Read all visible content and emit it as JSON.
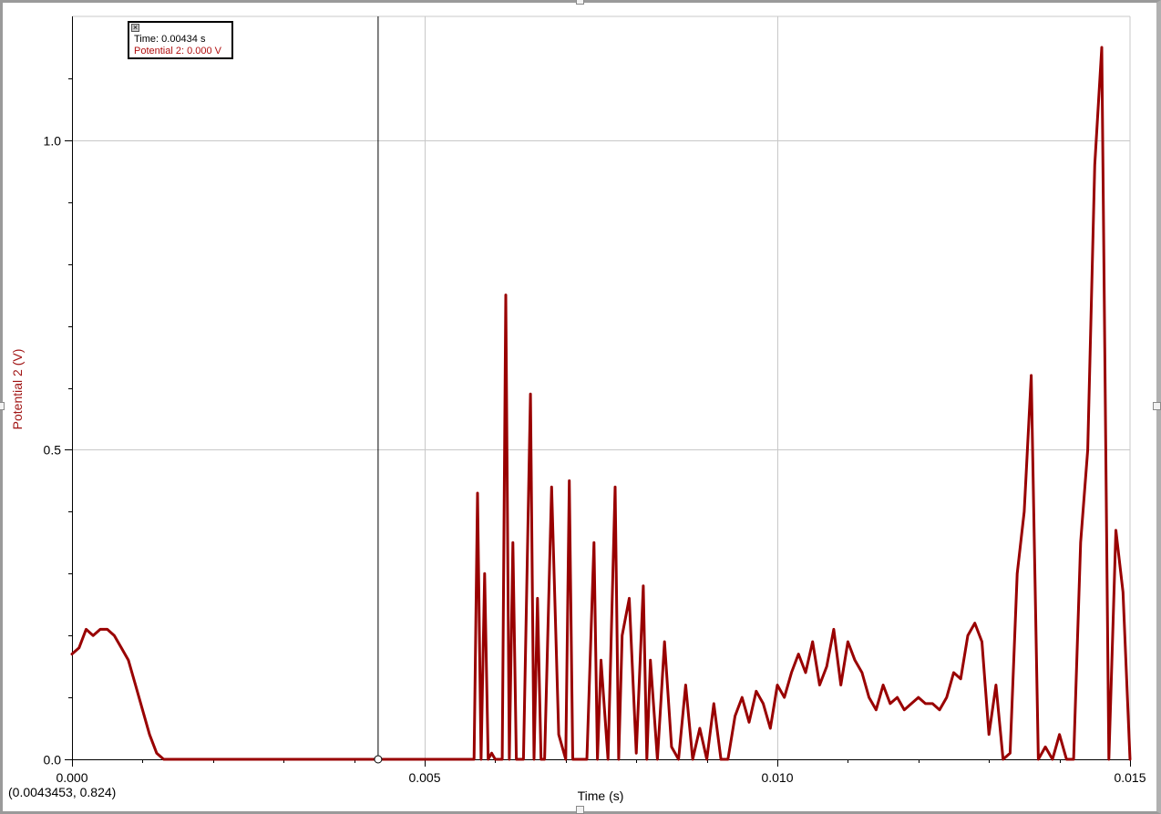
{
  "colors": {
    "series": "#990000",
    "axis_label_y": "#a11515",
    "grid": "#c8c8c8",
    "cursor_line": "#000000"
  },
  "cursor": {
    "time_label": "Time: 0.00434 s",
    "potential_label": "Potential 2: 0.000 V",
    "close_icon": "close-icon",
    "time_value": 0.00434
  },
  "readout": "(0.0043453, 0.824)",
  "chart_data": {
    "type": "line",
    "xlabel": "Time (s)",
    "ylabel": "Potential 2 (V)",
    "xlim": [
      0.0,
      0.015
    ],
    "ylim": [
      0.0,
      1.2
    ],
    "xticks": [
      {
        "value": 0.0,
        "label": "0.000"
      },
      {
        "value": 0.005,
        "label": "0.005"
      },
      {
        "value": 0.01,
        "label": "0.010"
      },
      {
        "value": 0.015,
        "label": "0.015"
      }
    ],
    "yticks": [
      {
        "value": 0.0,
        "label": "0.0"
      },
      {
        "value": 0.5,
        "label": "0.5"
      },
      {
        "value": 1.0,
        "label": "1.0"
      }
    ],
    "grid": true,
    "series": [
      {
        "x": [
          0.0,
          0.0001,
          0.0002,
          0.0003,
          0.0004,
          0.0005,
          0.0006,
          0.0007,
          0.0008,
          0.0009,
          0.001,
          0.0011,
          0.0012,
          0.0013,
          0.0014,
          0.002,
          0.003,
          0.004,
          0.005,
          0.0055,
          0.0057,
          0.00575,
          0.0058,
          0.00585,
          0.0059,
          0.00595,
          0.006,
          0.0061,
          0.00615,
          0.0062,
          0.00625,
          0.0063,
          0.0064,
          0.0065,
          0.00655,
          0.0066,
          0.00665,
          0.0067,
          0.0068,
          0.0069,
          0.007,
          0.00705,
          0.0071,
          0.0072,
          0.0073,
          0.0074,
          0.00745,
          0.0075,
          0.0076,
          0.0077,
          0.00775,
          0.0078,
          0.0079,
          0.008,
          0.0081,
          0.00815,
          0.0082,
          0.0083,
          0.0084,
          0.0085,
          0.0086,
          0.0087,
          0.0088,
          0.0089,
          0.009,
          0.0091,
          0.0092,
          0.0093,
          0.0094,
          0.0095,
          0.0096,
          0.0097,
          0.0098,
          0.0099,
          0.01,
          0.0101,
          0.0102,
          0.0103,
          0.0104,
          0.0105,
          0.0106,
          0.0107,
          0.0108,
          0.0109,
          0.011,
          0.0111,
          0.0112,
          0.0113,
          0.0114,
          0.0115,
          0.0116,
          0.0117,
          0.0118,
          0.0119,
          0.012,
          0.0121,
          0.0122,
          0.0123,
          0.0124,
          0.0125,
          0.0126,
          0.0127,
          0.0128,
          0.0129,
          0.013,
          0.0131,
          0.0132,
          0.0133,
          0.0134,
          0.0135,
          0.0136,
          0.0137,
          0.0138,
          0.0139,
          0.014,
          0.0141,
          0.0142,
          0.0143,
          0.0144,
          0.0145,
          0.0146,
          0.0147,
          0.0148,
          0.0149,
          0.015
        ],
        "y": [
          0.17,
          0.18,
          0.21,
          0.2,
          0.21,
          0.21,
          0.2,
          0.18,
          0.16,
          0.12,
          0.08,
          0.04,
          0.01,
          0.0,
          0.0,
          0.0,
          0.0,
          0.0,
          0.0,
          0.0,
          0.0,
          0.43,
          0.0,
          0.3,
          0.0,
          0.01,
          0.0,
          0.0,
          0.75,
          0.0,
          0.35,
          0.0,
          0.0,
          0.59,
          0.0,
          0.26,
          0.0,
          0.0,
          0.44,
          0.04,
          0.0,
          0.45,
          0.0,
          0.0,
          0.0,
          0.35,
          0.0,
          0.16,
          0.0,
          0.44,
          0.0,
          0.2,
          0.26,
          0.01,
          0.28,
          0.0,
          0.16,
          0.0,
          0.19,
          0.02,
          0.0,
          0.12,
          0.0,
          0.05,
          0.0,
          0.09,
          0.0,
          0.0,
          0.07,
          0.1,
          0.06,
          0.11,
          0.09,
          0.05,
          0.12,
          0.1,
          0.14,
          0.17,
          0.14,
          0.19,
          0.12,
          0.15,
          0.21,
          0.12,
          0.19,
          0.16,
          0.14,
          0.1,
          0.08,
          0.12,
          0.09,
          0.1,
          0.08,
          0.09,
          0.1,
          0.09,
          0.09,
          0.08,
          0.1,
          0.14,
          0.13,
          0.2,
          0.22,
          0.19,
          0.04,
          0.12,
          0.0,
          0.01,
          0.3,
          0.4,
          0.62,
          0.0,
          0.02,
          0.0,
          0.04,
          0.0,
          0.0,
          0.35,
          0.5,
          0.96,
          1.15,
          0.0,
          0.37,
          0.27,
          0.0
        ]
      }
    ]
  }
}
